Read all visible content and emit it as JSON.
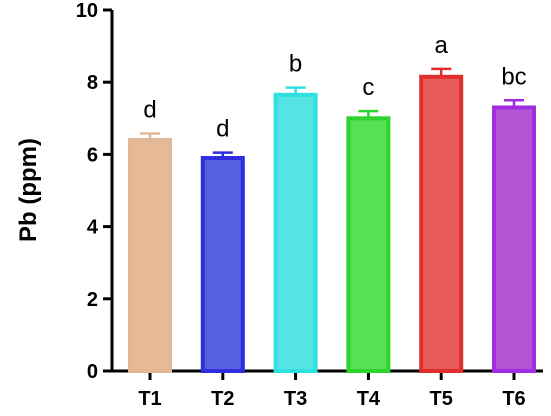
{
  "chart_data": {
    "type": "bar",
    "title": "",
    "xlabel": "",
    "ylabel": "Pb (ppm)",
    "ylim": [
      0,
      10
    ],
    "yticks": [
      0,
      2,
      4,
      6,
      8,
      10
    ],
    "grid": false,
    "legend": "none",
    "categories": [
      "T1",
      "T2",
      "T3",
      "T4",
      "T5",
      "T6"
    ],
    "values": [
      6.4,
      5.9,
      7.65,
      7.0,
      8.15,
      7.3
    ],
    "errors": [
      0.18,
      0.15,
      0.2,
      0.2,
      0.22,
      0.2
    ],
    "significance_labels": [
      "d",
      "d",
      "b",
      "c",
      "a",
      "bc"
    ],
    "bar_fill_colors": [
      "#e8b995",
      "#5660e0",
      "#55e3e3",
      "#55e055",
      "#e85a5a",
      "#b455d6"
    ],
    "bar_edge_colors": [
      "#e3b896",
      "#2e2ee0",
      "#2ee0e0",
      "#2ed42e",
      "#e02e2e",
      "#a02ee0"
    ]
  }
}
